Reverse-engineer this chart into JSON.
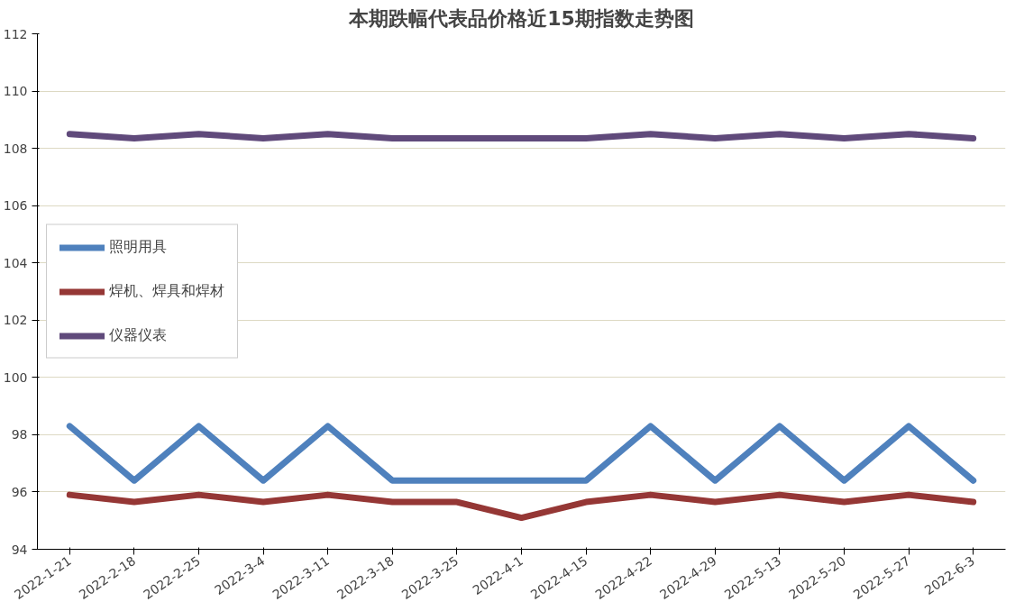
{
  "chart_data": {
    "type": "line",
    "title": "本期跌幅代表品价格近15期指数走势图",
    "categories": [
      "2022-1-21",
      "2022-2-18",
      "2022-2-25",
      "2022-3-4",
      "2022-3-11",
      "2022-3-18",
      "2022-3-25",
      "2022-4-1",
      "2022-4-15",
      "2022-4-22",
      "2022-4-29",
      "2022-5-13",
      "2022-5-20",
      "2022-5-27",
      "2022-6-3"
    ],
    "series": [
      {
        "name": "照明用具",
        "color": "#4f81bd",
        "values": [
          98.3,
          96.4,
          98.3,
          96.4,
          98.3,
          96.4,
          96.4,
          96.4,
          96.4,
          98.3,
          96.4,
          98.3,
          96.4,
          98.3,
          96.4
        ]
      },
      {
        "name": "焊机、焊具和焊材",
        "color": "#953735",
        "values": [
          95.9,
          95.65,
          95.9,
          95.65,
          95.9,
          95.65,
          95.65,
          95.1,
          95.65,
          95.9,
          95.65,
          95.9,
          95.65,
          95.9,
          95.65
        ]
      },
      {
        "name": "仪器仪表",
        "color": "#604a7b",
        "values": [
          108.5,
          108.35,
          108.5,
          108.35,
          108.5,
          108.35,
          108.35,
          108.35,
          108.35,
          108.5,
          108.35,
          108.5,
          108.35,
          108.5,
          108.35
        ]
      }
    ],
    "ylim": [
      94,
      112
    ],
    "yticks": [
      94,
      96,
      98,
      100,
      102,
      104,
      106,
      108,
      110,
      112
    ],
    "grid": "y",
    "legend": "left",
    "marker": "none",
    "line_style": "solid"
  }
}
